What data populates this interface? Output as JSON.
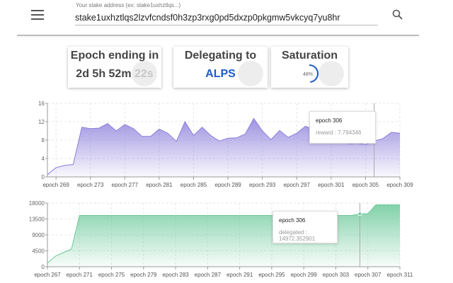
{
  "header": {
    "address_label": "Your stake address (ex: stake1uxhztlqs...)",
    "address_value": "stake1uxhztlqs2lzvfcndsf0h3zp3rxg0pd5dxzp0pkgmw5vkcyq7yu8hr",
    "menu_icon": "hamburger-icon",
    "search_icon": "search-icon"
  },
  "cards": {
    "epoch": {
      "title": "Epoch ending in",
      "value": "2d 5h 52m 22s"
    },
    "delegating": {
      "title": "Delegating to",
      "value": "ALPS",
      "color": "#1e5bc6"
    },
    "saturation": {
      "title": "Saturation",
      "value": "48%",
      "percent": 48,
      "color": "#1e5bc6"
    }
  },
  "tooltips": {
    "reward": {
      "title": "epoch 306",
      "text": "reward : 7.794346"
    },
    "delegated": {
      "title": "epoch 306",
      "text": "delegated : 14972.352901"
    }
  },
  "chart_data": [
    {
      "type": "area",
      "series": [
        {
          "name": "reward",
          "color": "#8c7fdb",
          "x": [
            268,
            269,
            270,
            271,
            272,
            273,
            274,
            275,
            276,
            277,
            278,
            279,
            280,
            281,
            282,
            283,
            284,
            285,
            286,
            287,
            288,
            289,
            290,
            291,
            292,
            293,
            294,
            295,
            296,
            297,
            298,
            299,
            300,
            301,
            302,
            303,
            304,
            305,
            306,
            307,
            308,
            309
          ],
          "values": [
            0.5,
            2,
            2.5,
            2.7,
            10.8,
            10.5,
            10.6,
            11.6,
            10,
            11.4,
            10.5,
            8.8,
            8.8,
            10.4,
            9.5,
            7.7,
            12,
            9,
            10.8,
            9,
            7.8,
            8.4,
            8.5,
            9.3,
            12.7,
            10,
            8.1,
            10.1,
            8.6,
            9.5,
            11,
            10.3,
            12,
            10,
            8.5,
            7.2,
            7.3,
            7,
            7.794346,
            8.3,
            9.7,
            9.5
          ]
        }
      ],
      "xticks": [
        "epoch 269",
        "epoch 273",
        "epoch 277",
        "epoch 281",
        "epoch 285",
        "epoch 289",
        "epoch 293",
        "epoch 297",
        "epoch 301",
        "epoch 305",
        "epoch 309"
      ],
      "xtick_values": [
        269,
        273,
        277,
        281,
        285,
        289,
        293,
        297,
        301,
        305,
        309
      ],
      "yticks": [
        0,
        4,
        8,
        12,
        16
      ],
      "ylim": [
        0,
        16
      ],
      "xlim": [
        268,
        309
      ],
      "grid": true
    },
    {
      "type": "area",
      "series": [
        {
          "name": "delegated",
          "color": "#6cc99a",
          "x": [
            267,
            268,
            269,
            270,
            271,
            272,
            273,
            274,
            275,
            276,
            277,
            278,
            279,
            280,
            281,
            282,
            283,
            284,
            285,
            286,
            287,
            288,
            289,
            290,
            291,
            292,
            293,
            294,
            295,
            296,
            297,
            298,
            299,
            300,
            301,
            302,
            303,
            304,
            305,
            306,
            307,
            308,
            309,
            310,
            311
          ],
          "values": [
            1000,
            3000,
            4000,
            5000,
            14500,
            14500,
            14500,
            14500,
            14500,
            14500,
            14500,
            14500,
            14500,
            14500,
            14500,
            14500,
            14500,
            14500,
            14500,
            14500,
            14500,
            14500,
            14500,
            14500,
            14500,
            14500,
            14500,
            14500,
            14500,
            14500,
            14500,
            14500,
            14500,
            14500,
            14500,
            14500,
            14500,
            14500,
            14500,
            14972.352901,
            14972.352901,
            17500,
            17500,
            17500,
            17500
          ]
        }
      ],
      "xticks": [
        "epoch 267",
        "epoch 271",
        "epoch 275",
        "epoch 279",
        "epoch 283",
        "epoch 287",
        "epoch 291",
        "epoch 295",
        "epoch 299",
        "epoch 303",
        "epoch 307",
        "epoch 311"
      ],
      "xtick_values": [
        267,
        271,
        275,
        279,
        283,
        287,
        291,
        295,
        299,
        303,
        307,
        311
      ],
      "yticks": [
        0,
        4500,
        9000,
        13500,
        18000
      ],
      "ylim": [
        0,
        18000
      ],
      "xlim": [
        267,
        311
      ],
      "grid": true
    }
  ]
}
